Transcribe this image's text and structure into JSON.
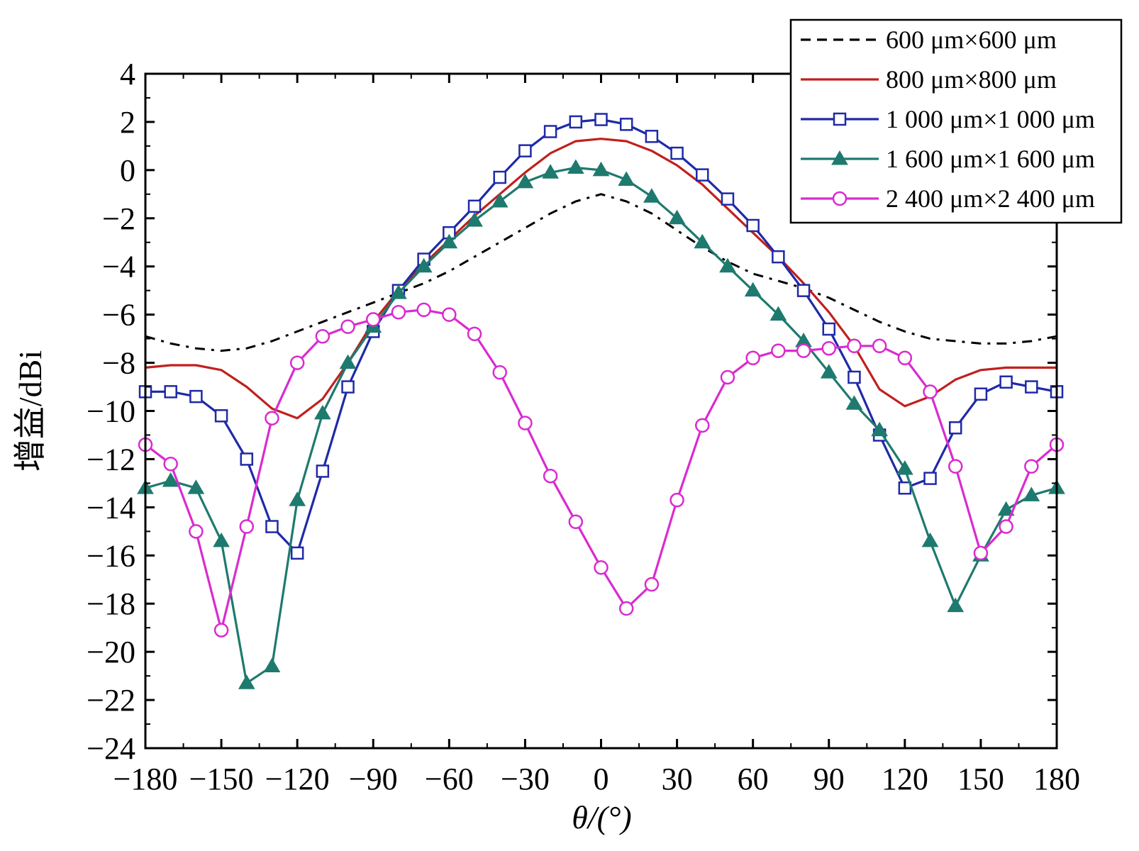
{
  "chart_data": {
    "type": "line",
    "xlabel": "θ/(°)",
    "ylabel": "增益/dBi",
    "xlim": [
      -180,
      180
    ],
    "ylim": [
      -24,
      4
    ],
    "xticks": [
      -180,
      -150,
      -120,
      -90,
      -60,
      -30,
      0,
      30,
      60,
      90,
      120,
      150,
      180
    ],
    "yticks": [
      -24,
      -22,
      -20,
      -18,
      -16,
      -14,
      -12,
      -10,
      -8,
      -6,
      -4,
      -2,
      0,
      2,
      4
    ],
    "xtick_labels": [
      "−180",
      "−150",
      "−120",
      "−90",
      "−60",
      "−30",
      "0",
      "30",
      "60",
      "90",
      "120",
      "150",
      "180"
    ],
    "ytick_labels": [
      "−24",
      "−22",
      "−20",
      "−18",
      "−16",
      "−14",
      "−12",
      "−10",
      "−8",
      "−6",
      "−4",
      "−2",
      "0",
      "2",
      "4"
    ],
    "grid": false,
    "legend_position": "top-right",
    "x": [
      -180,
      -170,
      -160,
      -150,
      -140,
      -130,
      -120,
      -110,
      -100,
      -90,
      -80,
      -70,
      -60,
      -50,
      -40,
      -30,
      -20,
      -10,
      0,
      10,
      20,
      30,
      40,
      50,
      60,
      70,
      80,
      90,
      100,
      110,
      120,
      130,
      140,
      150,
      160,
      170,
      180
    ],
    "series": [
      {
        "name": "600 μm×600 μm",
        "color": "#000000",
        "line_style": "dashdot",
        "marker": "none",
        "values": [
          -6.9,
          -7.2,
          -7.4,
          -7.5,
          -7.4,
          -7.1,
          -6.7,
          -6.3,
          -5.9,
          -5.5,
          -5.1,
          -4.7,
          -4.2,
          -3.6,
          -3.0,
          -2.4,
          -1.8,
          -1.3,
          -1.0,
          -1.3,
          -1.8,
          -2.5,
          -3.2,
          -3.8,
          -4.3,
          -4.6,
          -4.9,
          -5.3,
          -5.8,
          -6.3,
          -6.7,
          -7.0,
          -7.1,
          -7.2,
          -7.2,
          -7.1,
          -6.9
        ]
      },
      {
        "name": "800 μm×800 μm",
        "color": "#c0201e",
        "line_style": "solid",
        "marker": "none",
        "values": [
          -8.2,
          -8.1,
          -8.1,
          -8.3,
          -9.0,
          -9.9,
          -10.3,
          -9.5,
          -8.0,
          -6.3,
          -5.0,
          -3.9,
          -2.9,
          -1.9,
          -1.0,
          -0.1,
          0.7,
          1.2,
          1.3,
          1.2,
          0.8,
          0.2,
          -0.6,
          -1.6,
          -2.6,
          -3.6,
          -4.7,
          -5.9,
          -7.3,
          -9.1,
          -9.8,
          -9.4,
          -8.7,
          -8.3,
          -8.2,
          -8.2,
          -8.2
        ]
      },
      {
        "name": "1 000 μm×1 000 μm",
        "color": "#1f2aa6",
        "line_style": "solid",
        "marker": "open-square",
        "values": [
          -9.2,
          -9.2,
          -9.4,
          -10.2,
          -12.0,
          -14.8,
          -15.9,
          -12.5,
          -9.0,
          -6.7,
          -5.0,
          -3.7,
          -2.6,
          -1.5,
          -0.3,
          0.8,
          1.6,
          2.0,
          2.1,
          1.9,
          1.4,
          0.7,
          -0.2,
          -1.2,
          -2.3,
          -3.6,
          -5.0,
          -6.6,
          -8.6,
          -11.0,
          -13.2,
          -12.8,
          -10.7,
          -9.3,
          -8.8,
          -9.0,
          -9.2
        ]
      },
      {
        "name": "1 600 μm×1 600 μm",
        "color": "#1e7a6e",
        "line_style": "solid",
        "marker": "filled-triangle",
        "values": [
          -13.2,
          -12.9,
          -13.2,
          -15.4,
          -21.3,
          -20.6,
          -13.7,
          -10.1,
          -8.0,
          -6.5,
          -5.1,
          -4.0,
          -3.0,
          -2.1,
          -1.3,
          -0.5,
          -0.1,
          0.1,
          0.0,
          -0.4,
          -1.1,
          -2.0,
          -3.0,
          -4.0,
          -5.0,
          -6.0,
          -7.1,
          -8.4,
          -9.7,
          -10.8,
          -12.4,
          -15.4,
          -18.1,
          -16.0,
          -14.1,
          -13.5,
          -13.2
        ]
      },
      {
        "name": "2 400 μm×2 400 μm",
        "color": "#d92bd0",
        "line_style": "solid",
        "marker": "open-circle",
        "values": [
          -11.4,
          -12.2,
          -15.0,
          -19.1,
          -14.8,
          -10.3,
          -8.0,
          -6.9,
          -6.5,
          -6.2,
          -5.9,
          -5.8,
          -6.0,
          -6.8,
          -8.4,
          -10.5,
          -12.7,
          -14.6,
          -16.5,
          -18.2,
          -17.2,
          -13.7,
          -10.6,
          -8.6,
          -7.8,
          -7.5,
          -7.5,
          -7.4,
          -7.3,
          -7.3,
          -7.8,
          -9.2,
          -12.3,
          -15.9,
          -14.8,
          -12.3,
          -11.4
        ]
      }
    ]
  }
}
